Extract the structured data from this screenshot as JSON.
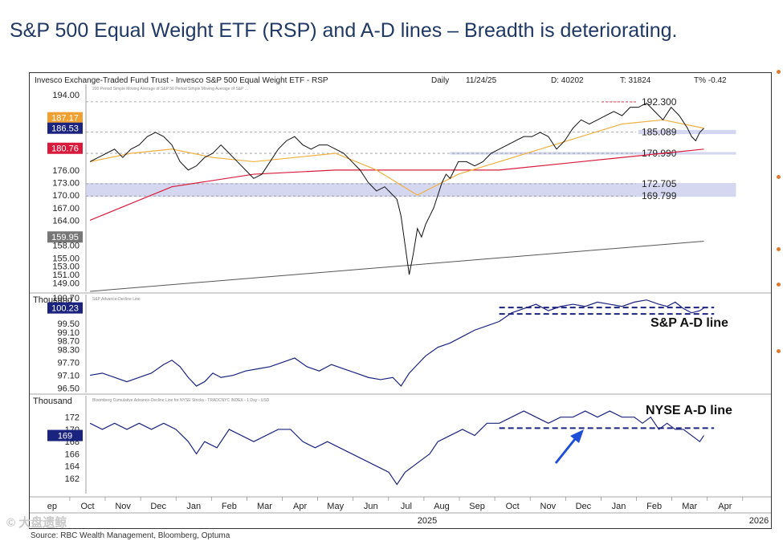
{
  "slide": {
    "title": "S&P 500 Equal Weight ETF (RSP) and A-D lines – Breadth is deteriorating.",
    "source": "Source: RBC Wealth Management, Bloomberg, Optuma",
    "watermark": "© 大盘遗鲸"
  },
  "chart_data": {
    "type": "line",
    "header": {
      "name": "Invesco Exchange-Traded Fund Trust - Invesco S&P 500 Equal Weight ETF - RSP",
      "period": "Daily",
      "date": "11/24/25",
      "d": "D: 40202",
      "t": "T: 31824",
      "tpct": "T% -0.42"
    },
    "x_axis": {
      "months": [
        "Sep",
        "Oct",
        "Nov",
        "Dec",
        "Jan",
        "Feb",
        "Mar",
        "Apr",
        "May",
        "Jun",
        "Jul",
        "Aug",
        "Sep",
        "Oct",
        "Nov",
        "Dec",
        "Jan",
        "Feb",
        "Mar",
        "Apr"
      ],
      "year_labels": [
        "2025",
        "2026"
      ]
    },
    "panels": [
      {
        "id": "price",
        "legend": "200 Period Simple Moving Average of S&P   50 Period Simple Moving Average of S&P   ...",
        "ylim": [
          147,
          196.5
        ],
        "ticks": [
          194.0,
          176.0,
          173.0,
          170.0,
          167.0,
          164.0,
          158.0,
          155.0,
          153.0,
          151.0,
          149.0
        ],
        "badges": [
          {
            "value": "187.17",
            "color": "#f0a030"
          },
          {
            "value": "186.53",
            "color": "#1a237e"
          },
          {
            "value": "180.76",
            "color": "#d81b3c"
          },
          {
            "value": "159.95",
            "color": "#777777"
          }
        ],
        "levels": [
          {
            "label": "192.300",
            "value": 192.3
          },
          {
            "label": "185.089",
            "value": 185.089
          },
          {
            "label": "179.990",
            "value": 179.99
          },
          {
            "label": "172.705",
            "value": 172.705
          },
          {
            "label": "169.799",
            "value": 169.799
          }
        ],
        "price": [
          [
            0,
            178
          ],
          [
            4,
            179
          ],
          [
            8,
            180
          ],
          [
            12,
            181
          ],
          [
            16,
            179
          ],
          [
            20,
            181
          ],
          [
            24,
            182
          ],
          [
            28,
            184
          ],
          [
            32,
            185
          ],
          [
            36,
            184
          ],
          [
            40,
            182
          ],
          [
            44,
            178
          ],
          [
            48,
            176
          ],
          [
            52,
            177
          ],
          [
            56,
            179
          ],
          [
            60,
            180
          ],
          [
            64,
            182
          ],
          [
            68,
            180
          ],
          [
            72,
            178
          ],
          [
            76,
            176
          ],
          [
            80,
            174
          ],
          [
            84,
            175
          ],
          [
            88,
            178
          ],
          [
            92,
            181
          ],
          [
            96,
            183
          ],
          [
            100,
            184
          ],
          [
            104,
            182
          ],
          [
            108,
            181
          ],
          [
            112,
            182
          ],
          [
            116,
            182
          ],
          [
            120,
            181
          ],
          [
            124,
            180
          ],
          [
            128,
            178
          ],
          [
            132,
            176
          ],
          [
            136,
            173
          ],
          [
            140,
            171
          ],
          [
            144,
            172
          ],
          [
            148,
            170
          ],
          [
            150,
            169
          ],
          [
            152,
            165
          ],
          [
            154,
            158
          ],
          [
            156,
            151
          ],
          [
            158,
            156
          ],
          [
            160,
            162
          ],
          [
            162,
            160
          ],
          [
            164,
            163
          ],
          [
            166,
            165
          ],
          [
            168,
            167
          ],
          [
            170,
            170
          ],
          [
            172,
            173
          ],
          [
            174,
            175
          ],
          [
            176,
            174
          ],
          [
            178,
            176
          ],
          [
            180,
            178
          ],
          [
            184,
            178
          ],
          [
            188,
            177
          ],
          [
            192,
            178
          ],
          [
            196,
            180
          ],
          [
            200,
            181
          ],
          [
            204,
            182
          ],
          [
            208,
            183
          ],
          [
            212,
            184
          ],
          [
            216,
            184
          ],
          [
            220,
            185
          ],
          [
            224,
            184
          ],
          [
            228,
            181
          ],
          [
            232,
            183
          ],
          [
            236,
            186
          ],
          [
            240,
            188
          ],
          [
            244,
            187
          ],
          [
            248,
            188
          ],
          [
            252,
            189
          ],
          [
            256,
            190
          ],
          [
            260,
            189
          ],
          [
            264,
            191
          ],
          [
            268,
            191
          ],
          [
            272,
            192
          ],
          [
            276,
            190
          ],
          [
            280,
            188
          ],
          [
            284,
            191
          ],
          [
            288,
            189
          ],
          [
            292,
            186
          ],
          [
            294,
            184
          ],
          [
            296,
            183
          ],
          [
            298,
            185
          ],
          [
            300,
            186
          ]
        ],
        "ma50": [
          [
            0,
            178
          ],
          [
            20,
            180
          ],
          [
            40,
            181
          ],
          [
            60,
            179
          ],
          [
            80,
            178
          ],
          [
            100,
            179
          ],
          [
            120,
            180
          ],
          [
            140,
            176
          ],
          [
            160,
            170
          ],
          [
            180,
            175
          ],
          [
            200,
            178
          ],
          [
            220,
            181
          ],
          [
            240,
            184
          ],
          [
            260,
            187
          ],
          [
            280,
            188
          ],
          [
            300,
            186
          ]
        ],
        "ma200": [
          [
            0,
            164
          ],
          [
            40,
            172
          ],
          [
            80,
            175
          ],
          [
            120,
            176
          ],
          [
            160,
            176
          ],
          [
            200,
            176
          ],
          [
            240,
            178
          ],
          [
            280,
            180
          ],
          [
            300,
            181
          ]
        ],
        "long_ma": [
          [
            0,
            147
          ],
          [
            100,
            151
          ],
          [
            200,
            155
          ],
          [
            300,
            159
          ]
        ],
        "xrange": [
          -2,
          332
        ]
      },
      {
        "id": "sp_ad",
        "axis_unit": "Thousand",
        "legend": "S&P Advance-Decline Line",
        "label": "S&P A-D line",
        "ylim": [
          96.3,
          100.85
        ],
        "ticks": [
          100.7,
          99.5,
          99.1,
          98.7,
          98.3,
          97.7,
          97.1,
          96.5
        ],
        "badges": [
          {
            "value": "100.23",
            "color": "#1a237e"
          }
        ],
        "dashed": [
          100.25,
          99.95
        ],
        "series": [
          [
            0,
            97.1
          ],
          [
            6,
            97.2
          ],
          [
            12,
            97.0
          ],
          [
            18,
            96.8
          ],
          [
            24,
            97.0
          ],
          [
            30,
            97.2
          ],
          [
            36,
            97.6
          ],
          [
            40,
            97.8
          ],
          [
            44,
            97.5
          ],
          [
            48,
            97.0
          ],
          [
            52,
            96.6
          ],
          [
            56,
            96.8
          ],
          [
            60,
            97.2
          ],
          [
            64,
            97.0
          ],
          [
            70,
            97.1
          ],
          [
            76,
            97.3
          ],
          [
            82,
            97.4
          ],
          [
            88,
            97.5
          ],
          [
            94,
            97.7
          ],
          [
            100,
            97.9
          ],
          [
            106,
            97.5
          ],
          [
            112,
            97.3
          ],
          [
            118,
            97.6
          ],
          [
            124,
            97.4
          ],
          [
            130,
            97.2
          ],
          [
            136,
            97.0
          ],
          [
            142,
            96.9
          ],
          [
            148,
            97.0
          ],
          [
            152,
            96.6
          ],
          [
            156,
            97.2
          ],
          [
            160,
            97.6
          ],
          [
            164,
            98.0
          ],
          [
            170,
            98.4
          ],
          [
            176,
            98.6
          ],
          [
            182,
            98.9
          ],
          [
            188,
            99.2
          ],
          [
            194,
            99.4
          ],
          [
            200,
            99.6
          ],
          [
            206,
            100.0
          ],
          [
            212,
            100.2
          ],
          [
            218,
            100.4
          ],
          [
            224,
            100.1
          ],
          [
            230,
            100.3
          ],
          [
            236,
            100.4
          ],
          [
            242,
            100.3
          ],
          [
            248,
            100.5
          ],
          [
            254,
            100.4
          ],
          [
            260,
            100.3
          ],
          [
            266,
            100.5
          ],
          [
            272,
            100.6
          ],
          [
            278,
            100.4
          ],
          [
            282,
            100.3
          ],
          [
            286,
            100.5
          ],
          [
            290,
            100.2
          ],
          [
            294,
            100.0
          ],
          [
            298,
            100.1
          ],
          [
            300,
            100.23
          ]
        ],
        "xrange": [
          -2,
          332
        ]
      },
      {
        "id": "nyse_ad",
        "axis_unit": "Thousand",
        "legend": "Bloomberg Cumulative Advance-Decline Line for NYSE Stocks - TRADCNYC INDEX - 1 Day - USD",
        "label": "NYSE A-D line",
        "ylim": [
          159.5,
          175.5
        ],
        "ticks": [
          172,
          170,
          168,
          166,
          164,
          162
        ],
        "badges": [
          {
            "value": "169",
            "color": "#1a237e"
          }
        ],
        "dashed": [
          170.2
        ],
        "series": [
          [
            0,
            171
          ],
          [
            6,
            170
          ],
          [
            12,
            171
          ],
          [
            18,
            170
          ],
          [
            24,
            171
          ],
          [
            30,
            170
          ],
          [
            36,
            171
          ],
          [
            42,
            170
          ],
          [
            48,
            168
          ],
          [
            52,
            166
          ],
          [
            56,
            168
          ],
          [
            62,
            167
          ],
          [
            68,
            170
          ],
          [
            74,
            169
          ],
          [
            80,
            168
          ],
          [
            86,
            169
          ],
          [
            92,
            170
          ],
          [
            98,
            170
          ],
          [
            104,
            168
          ],
          [
            110,
            167
          ],
          [
            116,
            168
          ],
          [
            122,
            167
          ],
          [
            128,
            166
          ],
          [
            134,
            165
          ],
          [
            140,
            164
          ],
          [
            146,
            163
          ],
          [
            150,
            161
          ],
          [
            154,
            163
          ],
          [
            158,
            164
          ],
          [
            162,
            165
          ],
          [
            166,
            166
          ],
          [
            170,
            168
          ],
          [
            176,
            169
          ],
          [
            182,
            170
          ],
          [
            188,
            169
          ],
          [
            194,
            171
          ],
          [
            200,
            171
          ],
          [
            206,
            172
          ],
          [
            212,
            173
          ],
          [
            218,
            172
          ],
          [
            224,
            171
          ],
          [
            230,
            172
          ],
          [
            236,
            172
          ],
          [
            242,
            173
          ],
          [
            248,
            172
          ],
          [
            254,
            173
          ],
          [
            260,
            172
          ],
          [
            266,
            172
          ],
          [
            270,
            171
          ],
          [
            274,
            172
          ],
          [
            278,
            170
          ],
          [
            282,
            171
          ],
          [
            286,
            170
          ],
          [
            290,
            170
          ],
          [
            294,
            169
          ],
          [
            298,
            168
          ],
          [
            300,
            169
          ]
        ],
        "xrange": [
          -2,
          332
        ]
      }
    ]
  }
}
